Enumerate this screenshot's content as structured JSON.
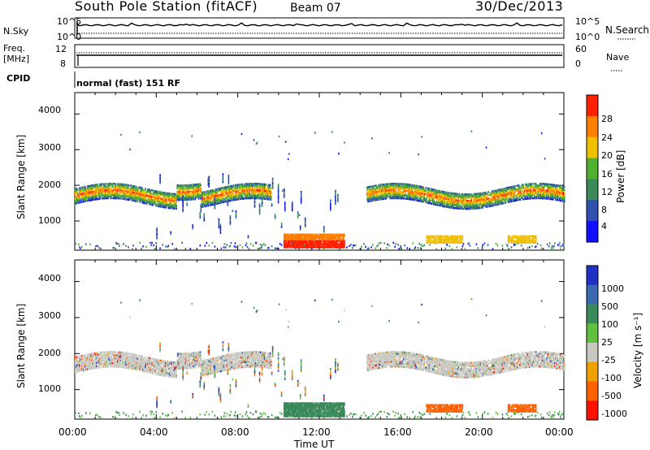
{
  "header": {
    "station": "South Pole Station (fitACF)",
    "beam": "Beam 07",
    "date": "30/Dec/2013"
  },
  "noise": {
    "left_label": "N.Sky",
    "right_label": "N.Search",
    "left_ticks": [
      "10^5",
      "10^0"
    ],
    "right_ticks": [
      "10^5",
      "10^0"
    ]
  },
  "freq": {
    "left_label": "Freq.",
    "left_unit": "[MHz]",
    "left_ticks": [
      "12",
      "8"
    ],
    "right_label": "Nave",
    "right_ticks": [
      "60",
      "0"
    ]
  },
  "cpid": {
    "label": "CPID",
    "value": "normal (fast) 151 RF"
  },
  "chart_data": [
    {
      "type": "heatmap",
      "ylabel": "Slant Range [km]",
      "ylim": [
        180,
        4600
      ],
      "yticks": [
        1000,
        2000,
        3000,
        4000
      ],
      "x_range": [
        "00:00",
        "24:00"
      ],
      "colorbar": {
        "label": "Power [dB]",
        "ticks": [
          "4",
          "8",
          "12",
          "16",
          "20",
          "24",
          "28"
        ],
        "colors": [
          "#1010ff",
          "#3050b0",
          "#3a8a5a",
          "#50b030",
          "#f0c000",
          "#ff8000",
          "#ff2000"
        ]
      }
    },
    {
      "type": "heatmap",
      "ylabel": "Slant Range [km]",
      "ylim": [
        180,
        4600
      ],
      "yticks": [
        1000,
        2000,
        3000,
        4000
      ],
      "xlabel": "Time UT",
      "xticks": [
        "00:00",
        "04:00",
        "08:00",
        "12:00",
        "16:00",
        "20:00",
        "00:00"
      ],
      "colorbar": {
        "label": "Velocity [m s⁻¹]",
        "ticks": [
          "1000",
          "500",
          "100",
          "25",
          "-25",
          "-100",
          "-500",
          "-1000"
        ],
        "colors": [
          "#2030c0",
          "#3c6ab0",
          "#3a8a5a",
          "#60c040",
          "#c8c8c0",
          "#f0a000",
          "#ff6000",
          "#ff1000"
        ]
      }
    }
  ]
}
